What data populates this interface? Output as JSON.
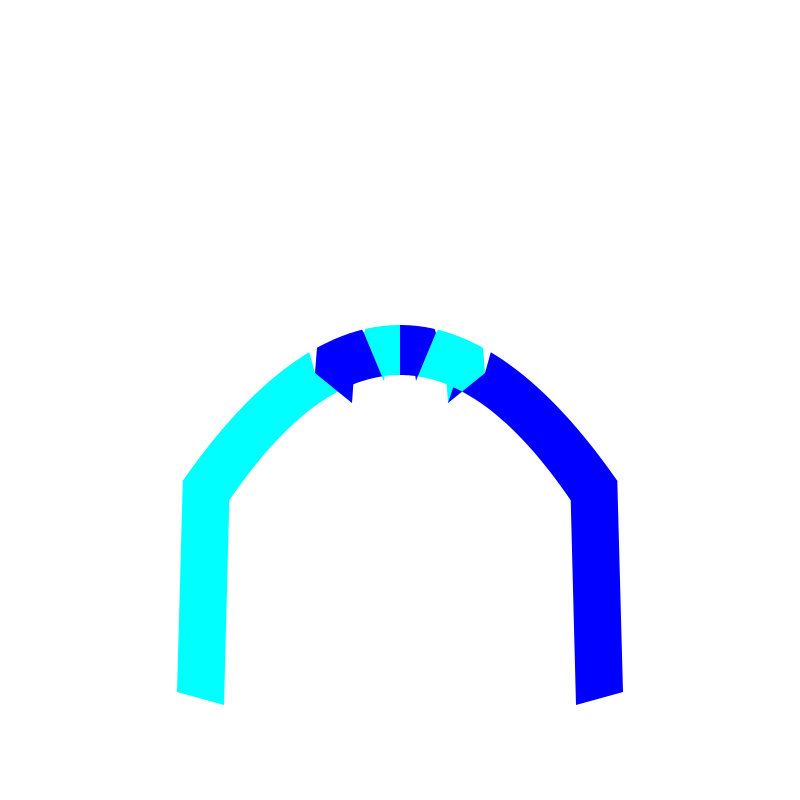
{
  "figure": {
    "shape": "parabolic-arch",
    "colors": {
      "primary": "#0000ff",
      "secondary": "#00ffff",
      "background": "#ffffff"
    },
    "segments": [
      {
        "color": "#00ffff"
      },
      {
        "color": "#0000ff"
      },
      {
        "color": "#00ffff"
      },
      {
        "color": "#0000ff"
      },
      {
        "color": "#00ffff"
      },
      {
        "color": "#0000ff"
      }
    ]
  }
}
